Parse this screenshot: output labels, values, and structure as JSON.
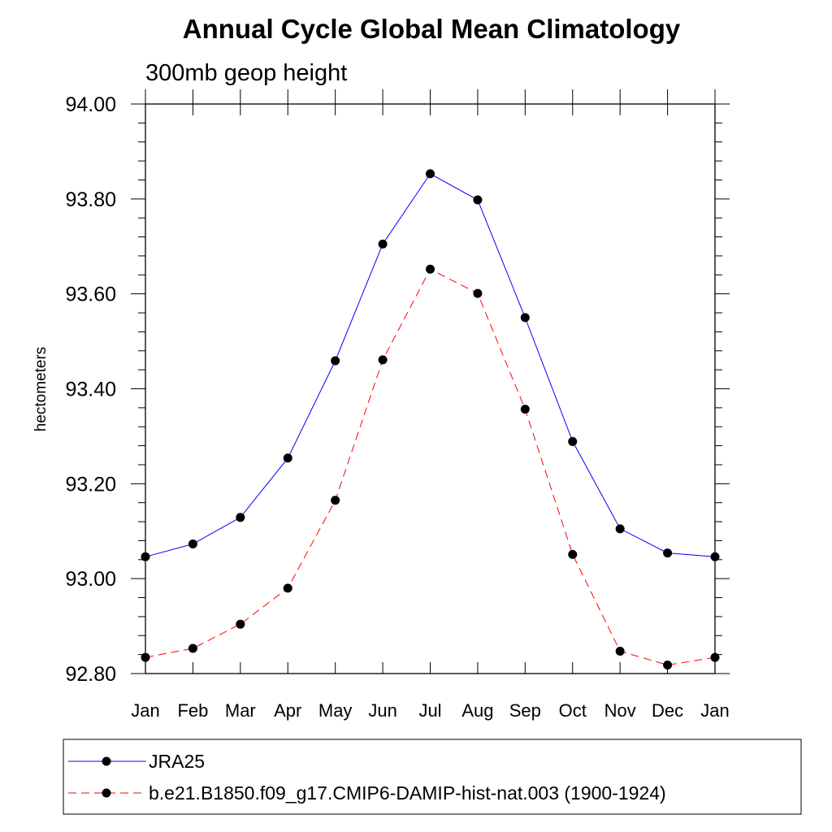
{
  "chart_data": {
    "type": "line",
    "title": "Annual Cycle Global Mean Climatology",
    "subtitle": "300mb geop height",
    "ylabel": "hectometers",
    "xlabel": "",
    "categories": [
      "Jan",
      "Feb",
      "Mar",
      "Apr",
      "May",
      "Jun",
      "Jul",
      "Aug",
      "Sep",
      "Oct",
      "Nov",
      "Dec",
      "Jan"
    ],
    "yticks": [
      "94.00",
      "93.80",
      "93.60",
      "93.40",
      "93.20",
      "93.00",
      "92.80"
    ],
    "ylim": [
      92.8,
      94.0
    ],
    "grid": false,
    "legend_placement": "bottom",
    "series": [
      {
        "name": "JRA25",
        "color": "#0000ff",
        "dash": "solid",
        "marker": "filled-circle",
        "values": [
          93.046,
          93.073,
          93.129,
          93.254,
          93.459,
          93.705,
          93.853,
          93.798,
          93.55,
          93.289,
          93.105,
          93.054,
          93.046
        ]
      },
      {
        "name": "b.e21.B1850.f09_g17.CMIP6-DAMIP-hist-nat.003 (1900-1924)",
        "color": "#ff0000",
        "dash": "dashed",
        "marker": "filled-circle",
        "values": [
          92.834,
          92.853,
          92.904,
          92.98,
          93.165,
          93.461,
          93.652,
          93.601,
          93.357,
          93.051,
          92.847,
          92.818,
          92.834
        ]
      }
    ]
  }
}
